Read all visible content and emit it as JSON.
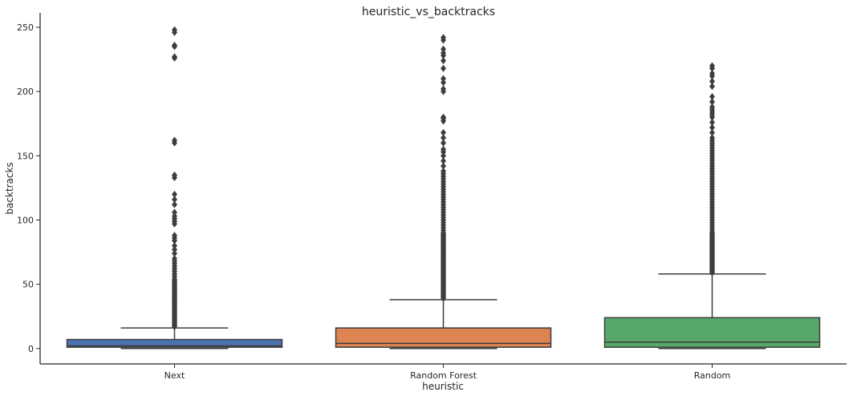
{
  "chart_data": {
    "type": "box",
    "title": "heuristic_vs_backtracks",
    "xlabel": "heuristic",
    "ylabel": "backtracks",
    "categories": [
      "Next",
      "Random Forest",
      "Random"
    ],
    "ylim": [
      -12,
      260
    ],
    "yticks": [
      0,
      50,
      100,
      150,
      200,
      250
    ],
    "grid": false,
    "colors": [
      "#4c72b0",
      "#dd8452",
      "#55a868"
    ],
    "line_color": "#3d3d3d",
    "boxes": [
      {
        "category": "Next",
        "whisker_low": 0,
        "q1": 1,
        "median": 2,
        "q3": 7,
        "whisker_high": 16,
        "outliers": [
          17,
          18,
          19,
          20,
          21,
          22,
          23,
          24,
          25,
          26,
          27,
          28,
          29,
          30,
          31,
          32,
          33,
          34,
          35,
          36,
          37,
          38,
          39,
          40,
          41,
          42,
          43,
          44,
          45,
          46,
          47,
          48,
          49,
          50,
          51,
          52,
          53,
          54,
          56,
          58,
          60,
          62,
          64,
          66,
          68,
          70,
          74,
          77,
          80,
          84,
          86,
          88,
          97,
          99,
          101,
          103,
          106,
          112,
          116,
          120,
          133,
          135,
          160,
          162,
          226,
          227,
          235,
          236,
          246,
          248
        ]
      },
      {
        "category": "Random Forest",
        "whisker_low": 0,
        "q1": 1,
        "median": 4,
        "q3": 16,
        "whisker_high": 38,
        "outliers": [
          39,
          40,
          41,
          42,
          43,
          44,
          45,
          46,
          47,
          48,
          49,
          50,
          51,
          52,
          53,
          54,
          55,
          56,
          57,
          58,
          59,
          60,
          61,
          62,
          63,
          64,
          65,
          66,
          67,
          68,
          69,
          70,
          71,
          72,
          73,
          74,
          75,
          76,
          77,
          78,
          79,
          80,
          81,
          82,
          83,
          84,
          85,
          86,
          87,
          88,
          89,
          90,
          92,
          94,
          96,
          98,
          100,
          102,
          104,
          106,
          108,
          110,
          112,
          114,
          116,
          118,
          120,
          122,
          124,
          126,
          128,
          130,
          132,
          134,
          136,
          138,
          142,
          146,
          150,
          153,
          155,
          160,
          164,
          168,
          177,
          179,
          180,
          200,
          202,
          207,
          210,
          218,
          224,
          228,
          230,
          233,
          240,
          242
        ]
      },
      {
        "category": "Random",
        "whisker_low": 0,
        "q1": 1,
        "median": 5,
        "q3": 24,
        "whisker_high": 58,
        "outliers": [
          59,
          60,
          61,
          62,
          63,
          64,
          65,
          66,
          67,
          68,
          69,
          70,
          71,
          72,
          73,
          74,
          75,
          76,
          77,
          78,
          79,
          80,
          81,
          82,
          83,
          84,
          85,
          86,
          87,
          88,
          89,
          90,
          92,
          94,
          96,
          98,
          100,
          102,
          104,
          106,
          108,
          110,
          112,
          114,
          116,
          118,
          120,
          122,
          124,
          126,
          128,
          130,
          132,
          134,
          136,
          138,
          140,
          142,
          144,
          146,
          148,
          150,
          152,
          154,
          156,
          158,
          160,
          162,
          164,
          168,
          172,
          176,
          180,
          182,
          184,
          186,
          188,
          192,
          196,
          204,
          208,
          212,
          214,
          218,
          220
        ]
      }
    ]
  }
}
